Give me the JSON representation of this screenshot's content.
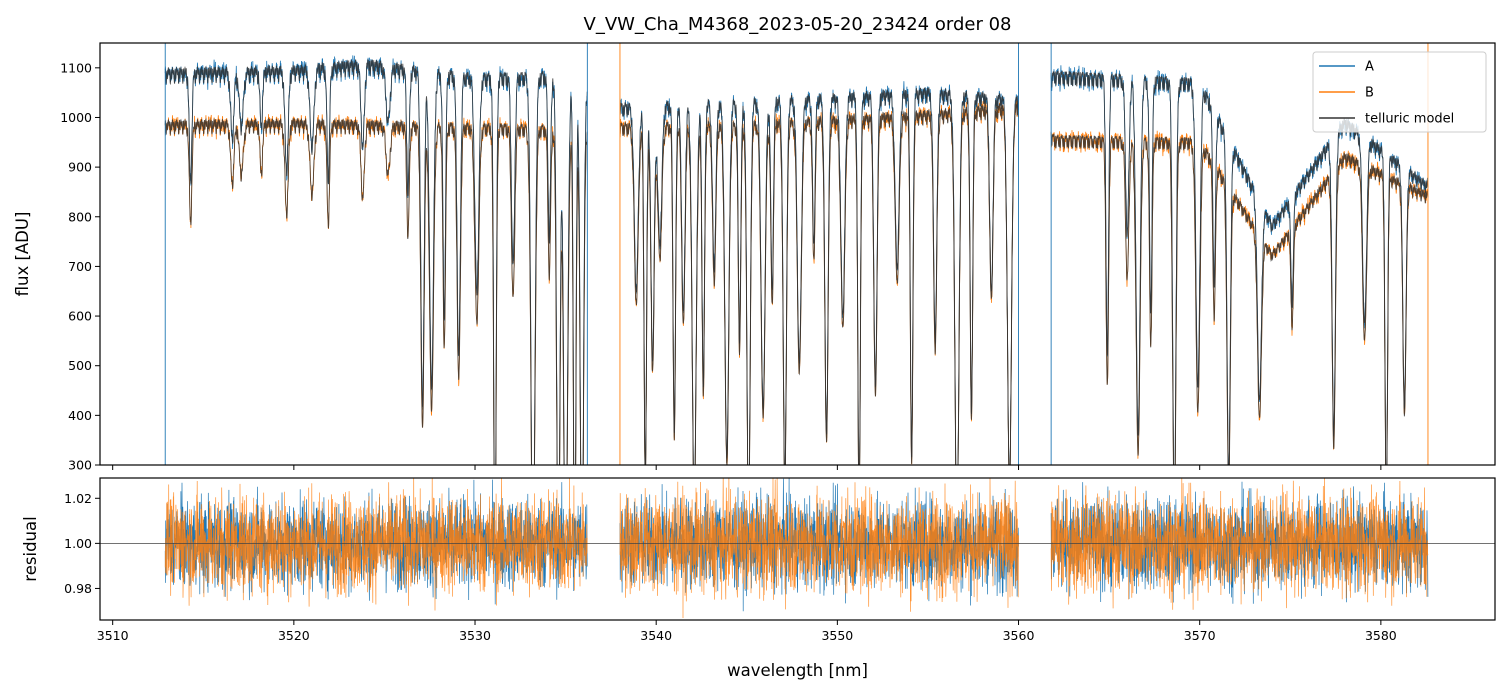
{
  "chart_data": [
    {
      "type": "line",
      "panel": "main",
      "title": "V_VW_Cha_M4368_2023-05-20_23424  order 08",
      "xlabel": "",
      "ylabel": "flux [ADU]",
      "xlim": [
        3509.3,
        3586.3
      ],
      "ylim": [
        300,
        1150
      ],
      "yticks": [
        300,
        400,
        500,
        600,
        700,
        800,
        900,
        1000,
        1100
      ],
      "xticks": [
        3510,
        3520,
        3530,
        3540,
        3550,
        3560,
        3570,
        3580
      ],
      "legend": {
        "position": "top-right",
        "entries": [
          "A",
          "B",
          "telluric model"
        ]
      },
      "segments": [
        [
          3512.9,
          3536.2
        ],
        [
          3538.0,
          3560.0
        ],
        [
          3561.8,
          3582.6
        ]
      ],
      "series": [
        {
          "name": "A",
          "color": "#1f77b4",
          "continuum_levels": [
            [
              3512.9,
              1100
            ],
            [
              3520,
              1105
            ],
            [
              3524,
              1118
            ],
            [
              3530,
              1090
            ],
            [
              3535,
              1095
            ],
            [
              3538,
              1030
            ],
            [
              3545,
              1040
            ],
            [
              3555,
              1060
            ],
            [
              3560,
              1045
            ],
            [
              3562,
              1095
            ],
            [
              3570,
              1080
            ],
            [
              3574,
              790
            ],
            [
              3578,
              1000
            ],
            [
              3582.6,
              870
            ]
          ]
        },
        {
          "name": "B",
          "color": "#ff7f0e",
          "continuum_levels": [
            [
              3512.9,
              995
            ],
            [
              3520,
              998
            ],
            [
              3530,
              990
            ],
            [
              3535,
              985
            ],
            [
              3538,
              990
            ],
            [
              3545,
              995
            ],
            [
              3555,
              1015
            ],
            [
              3560,
              1030
            ],
            [
              3562,
              965
            ],
            [
              3570,
              960
            ],
            [
              3574,
              730
            ],
            [
              3578,
              930
            ],
            [
              3582.6,
              850
            ]
          ]
        },
        {
          "name": "telluric model",
          "color": "#333333"
        }
      ],
      "absorption_lines_nm": [
        3514.3,
        3516.6,
        3517.1,
        3518.2,
        3519.6,
        3521.0,
        3521.9,
        3523.8,
        3525.2,
        3526.3,
        3527.1,
        3527.6,
        3528.3,
        3529.1,
        3530.1,
        3531.1,
        3532.1,
        3533.2,
        3534.1,
        3534.6,
        3535.0,
        3535.5,
        3535.9,
        3538.9,
        3539.4,
        3539.8,
        3540.2,
        3541.0,
        3541.5,
        3542.1,
        3542.6,
        3543.2,
        3543.9,
        3544.6,
        3545.1,
        3545.9,
        3546.4,
        3547.1,
        3547.9,
        3548.7,
        3549.4,
        3550.3,
        3551.2,
        3552.1,
        3553.3,
        3554.1,
        3555.4,
        3556.6,
        3557.4,
        3558.5,
        3559.5,
        3564.9,
        3566.0,
        3566.6,
        3567.3,
        3568.6,
        3569.9,
        3570.8,
        3571.6,
        3573.3,
        3575.1,
        3577.4,
        3579.1,
        3580.3,
        3581.3
      ]
    },
    {
      "type": "line",
      "panel": "residual",
      "title": "",
      "xlabel": "wavelength [nm]",
      "ylabel": "residual",
      "xlim": [
        3509.3,
        3586.3
      ],
      "ylim": [
        0.966,
        1.029
      ],
      "yticks": [
        0.98,
        1.0,
        1.02
      ],
      "xticks": [
        3510,
        3520,
        3530,
        3540,
        3550,
        3560,
        3570,
        3580
      ],
      "reference_line": 1.0,
      "series": [
        {
          "name": "A",
          "color": "#1f77b4",
          "noise_sigma": 0.01
        },
        {
          "name": "B",
          "color": "#ff7f0e",
          "noise_sigma": 0.011
        }
      ]
    }
  ]
}
